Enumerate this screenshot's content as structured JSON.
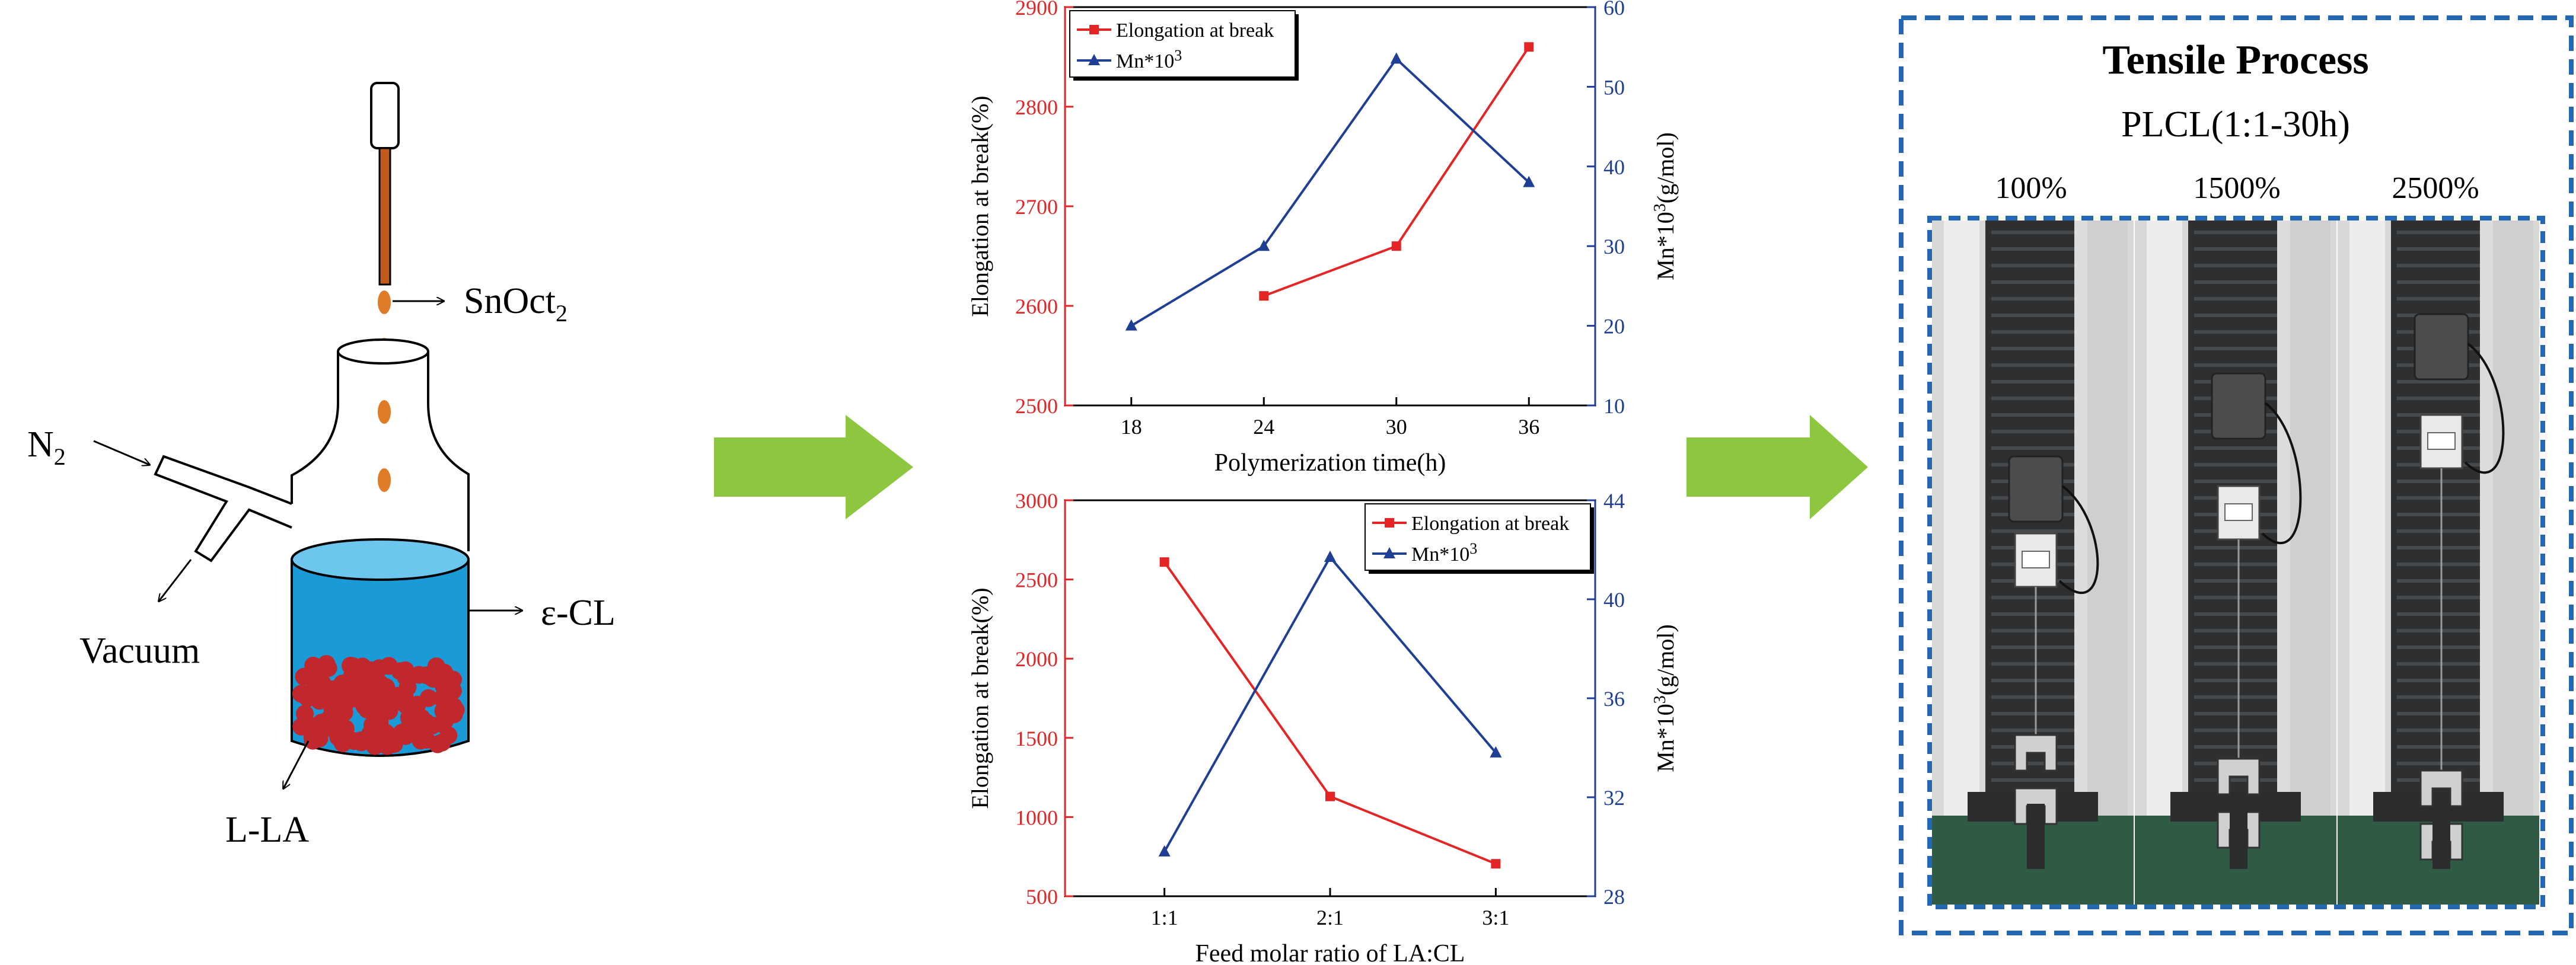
{
  "reactor": {
    "catalyst_label": "SnOct",
    "catalyst_sub": "2",
    "gas_label": "N",
    "gas_sub": "2",
    "vacuum_label": "Vacuum",
    "solvent_label": "ε-CL",
    "monomer_label": "L-LA",
    "colors": {
      "liquid": "#1a9ad6",
      "liquid_top": "#6cc6ee",
      "beads": "#c0282d",
      "drops": "#e07b26",
      "needle": "#c25a1c"
    }
  },
  "arrows": {
    "color": "#8dc63f"
  },
  "chart_data": [
    {
      "type": "line",
      "id": "top",
      "xlabel": "Polymerization time(h)",
      "ylabel": "Elongation at break(%)",
      "y2label_main": "Mn*10",
      "y2label_sup": "3",
      "y2label_tail": "(g/mol)",
      "x_ticks": [
        "18",
        "24",
        "30",
        "36"
      ],
      "x_values": [
        18,
        24,
        30,
        36
      ],
      "xlim": [
        15,
        39
      ],
      "ylim": [
        2500,
        2900
      ],
      "y_ticks": [
        "2500",
        "2600",
        "2700",
        "2800",
        "2900"
      ],
      "y2lim": [
        10,
        60
      ],
      "y2_ticks": [
        "10",
        "20",
        "30",
        "40",
        "50",
        "60"
      ],
      "legend_position": "top-left",
      "series": [
        {
          "name": "Elongation at break",
          "axis": "left",
          "color": "#e32526",
          "marker": "square",
          "x": [
            24,
            30,
            36
          ],
          "values": [
            2610,
            2660,
            2860
          ]
        },
        {
          "name": "Mn*10",
          "name_sup": "3",
          "axis": "right",
          "color": "#1f3f95",
          "marker": "triangle",
          "x": [
            18,
            24,
            30,
            36
          ],
          "values": [
            20,
            30,
            53.5,
            38
          ]
        }
      ]
    },
    {
      "type": "line",
      "id": "bottom",
      "xlabel": "Feed molar ratio of LA:CL",
      "ylabel": "Elongation at break(%)",
      "y2label_main": "Mn*10",
      "y2label_sup": "3",
      "y2label_tail": "(g/mol)",
      "x_ticks": [
        "1:1",
        "2:1",
        "3:1"
      ],
      "x_values": [
        1,
        2,
        3
      ],
      "xlim": [
        0.4,
        3.6
      ],
      "ylim": [
        500,
        3000
      ],
      "y_ticks": [
        "500",
        "1000",
        "1500",
        "2000",
        "2500",
        "3000"
      ],
      "y2lim": [
        28,
        44
      ],
      "y2_ticks": [
        "28",
        "32",
        "36",
        "40",
        "44"
      ],
      "legend_position": "top-right",
      "series": [
        {
          "name": "Elongation at break",
          "axis": "left",
          "color": "#e32526",
          "marker": "square",
          "x": [
            1,
            2,
            3
          ],
          "values": [
            2610,
            1130,
            705
          ]
        },
        {
          "name": "Mn*10",
          "name_sup": "3",
          "axis": "right",
          "color": "#1f3f95",
          "marker": "triangle",
          "x": [
            1,
            2,
            3
          ],
          "values": [
            29.8,
            41.7,
            33.8
          ]
        }
      ]
    }
  ],
  "tensile": {
    "title": "Tensile Process",
    "subtitle": "PLCL(1:1-30h)",
    "strains": [
      "100%",
      "1500%",
      "2500%"
    ],
    "border_color": "#2467b2"
  }
}
